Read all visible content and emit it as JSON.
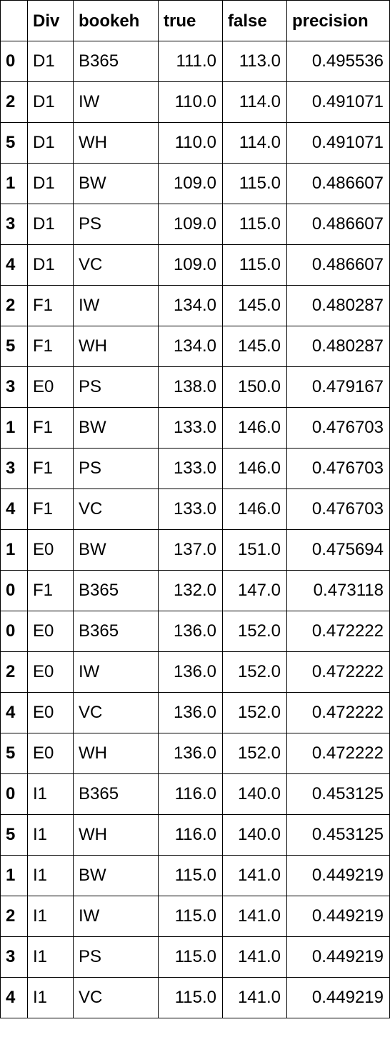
{
  "table": {
    "columns": [
      "",
      "Div",
      "bookeh",
      "true",
      "false",
      "precision"
    ],
    "rows": [
      [
        "0",
        "D1",
        "B365",
        "111.0",
        "113.0",
        "0.495536"
      ],
      [
        "2",
        "D1",
        "IW",
        "110.0",
        "114.0",
        "0.491071"
      ],
      [
        "5",
        "D1",
        "WH",
        "110.0",
        "114.0",
        "0.491071"
      ],
      [
        "1",
        "D1",
        "BW",
        "109.0",
        "115.0",
        "0.486607"
      ],
      [
        "3",
        "D1",
        "PS",
        "109.0",
        "115.0",
        "0.486607"
      ],
      [
        "4",
        "D1",
        "VC",
        "109.0",
        "115.0",
        "0.486607"
      ],
      [
        "2",
        "F1",
        "IW",
        "134.0",
        "145.0",
        "0.480287"
      ],
      [
        "5",
        "F1",
        "WH",
        "134.0",
        "145.0",
        "0.480287"
      ],
      [
        "3",
        "E0",
        "PS",
        "138.0",
        "150.0",
        "0.479167"
      ],
      [
        "1",
        "F1",
        "BW",
        "133.0",
        "146.0",
        "0.476703"
      ],
      [
        "3",
        "F1",
        "PS",
        "133.0",
        "146.0",
        "0.476703"
      ],
      [
        "4",
        "F1",
        "VC",
        "133.0",
        "146.0",
        "0.476703"
      ],
      [
        "1",
        "E0",
        "BW",
        "137.0",
        "151.0",
        "0.475694"
      ],
      [
        "0",
        "F1",
        "B365",
        "132.0",
        "147.0",
        "0.473118"
      ],
      [
        "0",
        "E0",
        "B365",
        "136.0",
        "152.0",
        "0.472222"
      ],
      [
        "2",
        "E0",
        "IW",
        "136.0",
        "152.0",
        "0.472222"
      ],
      [
        "4",
        "E0",
        "VC",
        "136.0",
        "152.0",
        "0.472222"
      ],
      [
        "5",
        "E0",
        "WH",
        "136.0",
        "152.0",
        "0.472222"
      ],
      [
        "0",
        "I1",
        "B365",
        "116.0",
        "140.0",
        "0.453125"
      ],
      [
        "5",
        "I1",
        "WH",
        "116.0",
        "140.0",
        "0.453125"
      ],
      [
        "1",
        "I1",
        "BW",
        "115.0",
        "141.0",
        "0.449219"
      ],
      [
        "2",
        "I1",
        "IW",
        "115.0",
        "141.0",
        "0.449219"
      ],
      [
        "3",
        "I1",
        "PS",
        "115.0",
        "141.0",
        "0.449219"
      ],
      [
        "4",
        "I1",
        "VC",
        "115.0",
        "141.0",
        "0.449219"
      ]
    ]
  }
}
